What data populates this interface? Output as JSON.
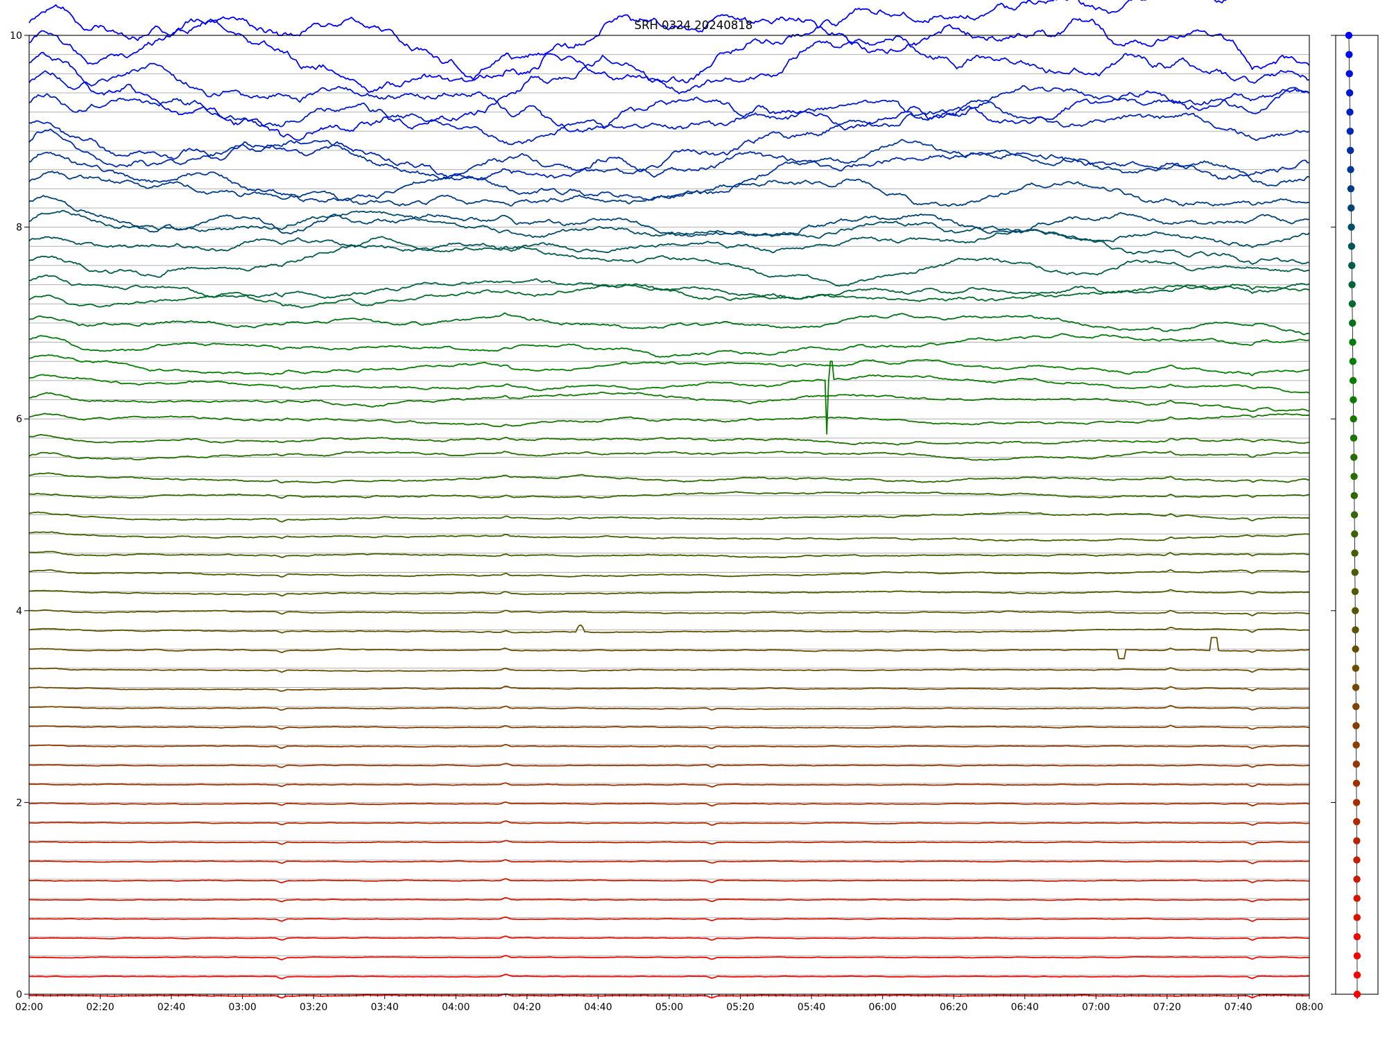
{
  "chart_data": [
    {
      "type": "line",
      "title": "SRH 0324 20240818",
      "xlabel": "",
      "ylabel": "",
      "x_range": [
        "02:00",
        "08:00"
      ],
      "x_ticks": [
        "02:00",
        "02:20",
        "02:40",
        "03:00",
        "03:20",
        "03:40",
        "04:00",
        "04:20",
        "04:40",
        "05:00",
        "05:20",
        "05:40",
        "06:00",
        "06:20",
        "06:40",
        "07:00",
        "07:20",
        "07:40",
        "08:00"
      ],
      "ylim": [
        0,
        10
      ],
      "y_ticks": [
        0,
        2,
        4,
        6,
        8,
        10
      ],
      "grid": "horizontal at each trace baseline",
      "legend": "none",
      "series_count": 51,
      "baseline_spacing": 0.2,
      "color_gradient": [
        "#ff0000",
        "#6e4a00",
        "#008000",
        "#0000ff"
      ],
      "series_shape": {
        "top_traces": "noisy, with initial rise near 02:00 and wander of ~0.1",
        "common_events": [
          {
            "time": "03:11",
            "kind": "small dip"
          },
          {
            "time": "04:14",
            "kind": "small bump"
          },
          {
            "time": "05:12",
            "kind": "small dip (low traces)"
          },
          {
            "time": "07:21",
            "kind": "small bump (mid traces)"
          },
          {
            "time": "07:44",
            "kind": "small dip"
          }
        ],
        "spikes": [
          {
            "series_index": 32,
            "time_range": [
              "05:44",
              "05:46"
            ],
            "kind": "spike",
            "low": 5.5,
            "high": 6.6
          },
          {
            "series_index": 18,
            "time_range": [
              "07:06",
              "07:08"
            ],
            "kind": "dropout",
            "low": 3.5
          },
          {
            "series_index": 18,
            "time_range": [
              "07:32",
              "07:34"
            ],
            "kind": "dropout",
            "low": 3.72
          },
          {
            "series_index": 19,
            "time": "04:35",
            "kind": "bump",
            "high": 3.86
          }
        ]
      }
    },
    {
      "type": "scatter",
      "description_of_axis": "side panel, shares y axis",
      "points": "one marker per series baseline from 0 to 10 in steps of 0.2, colored by the same gradient",
      "x_offsets_note": "markers drift slightly left toward the top"
    }
  ]
}
